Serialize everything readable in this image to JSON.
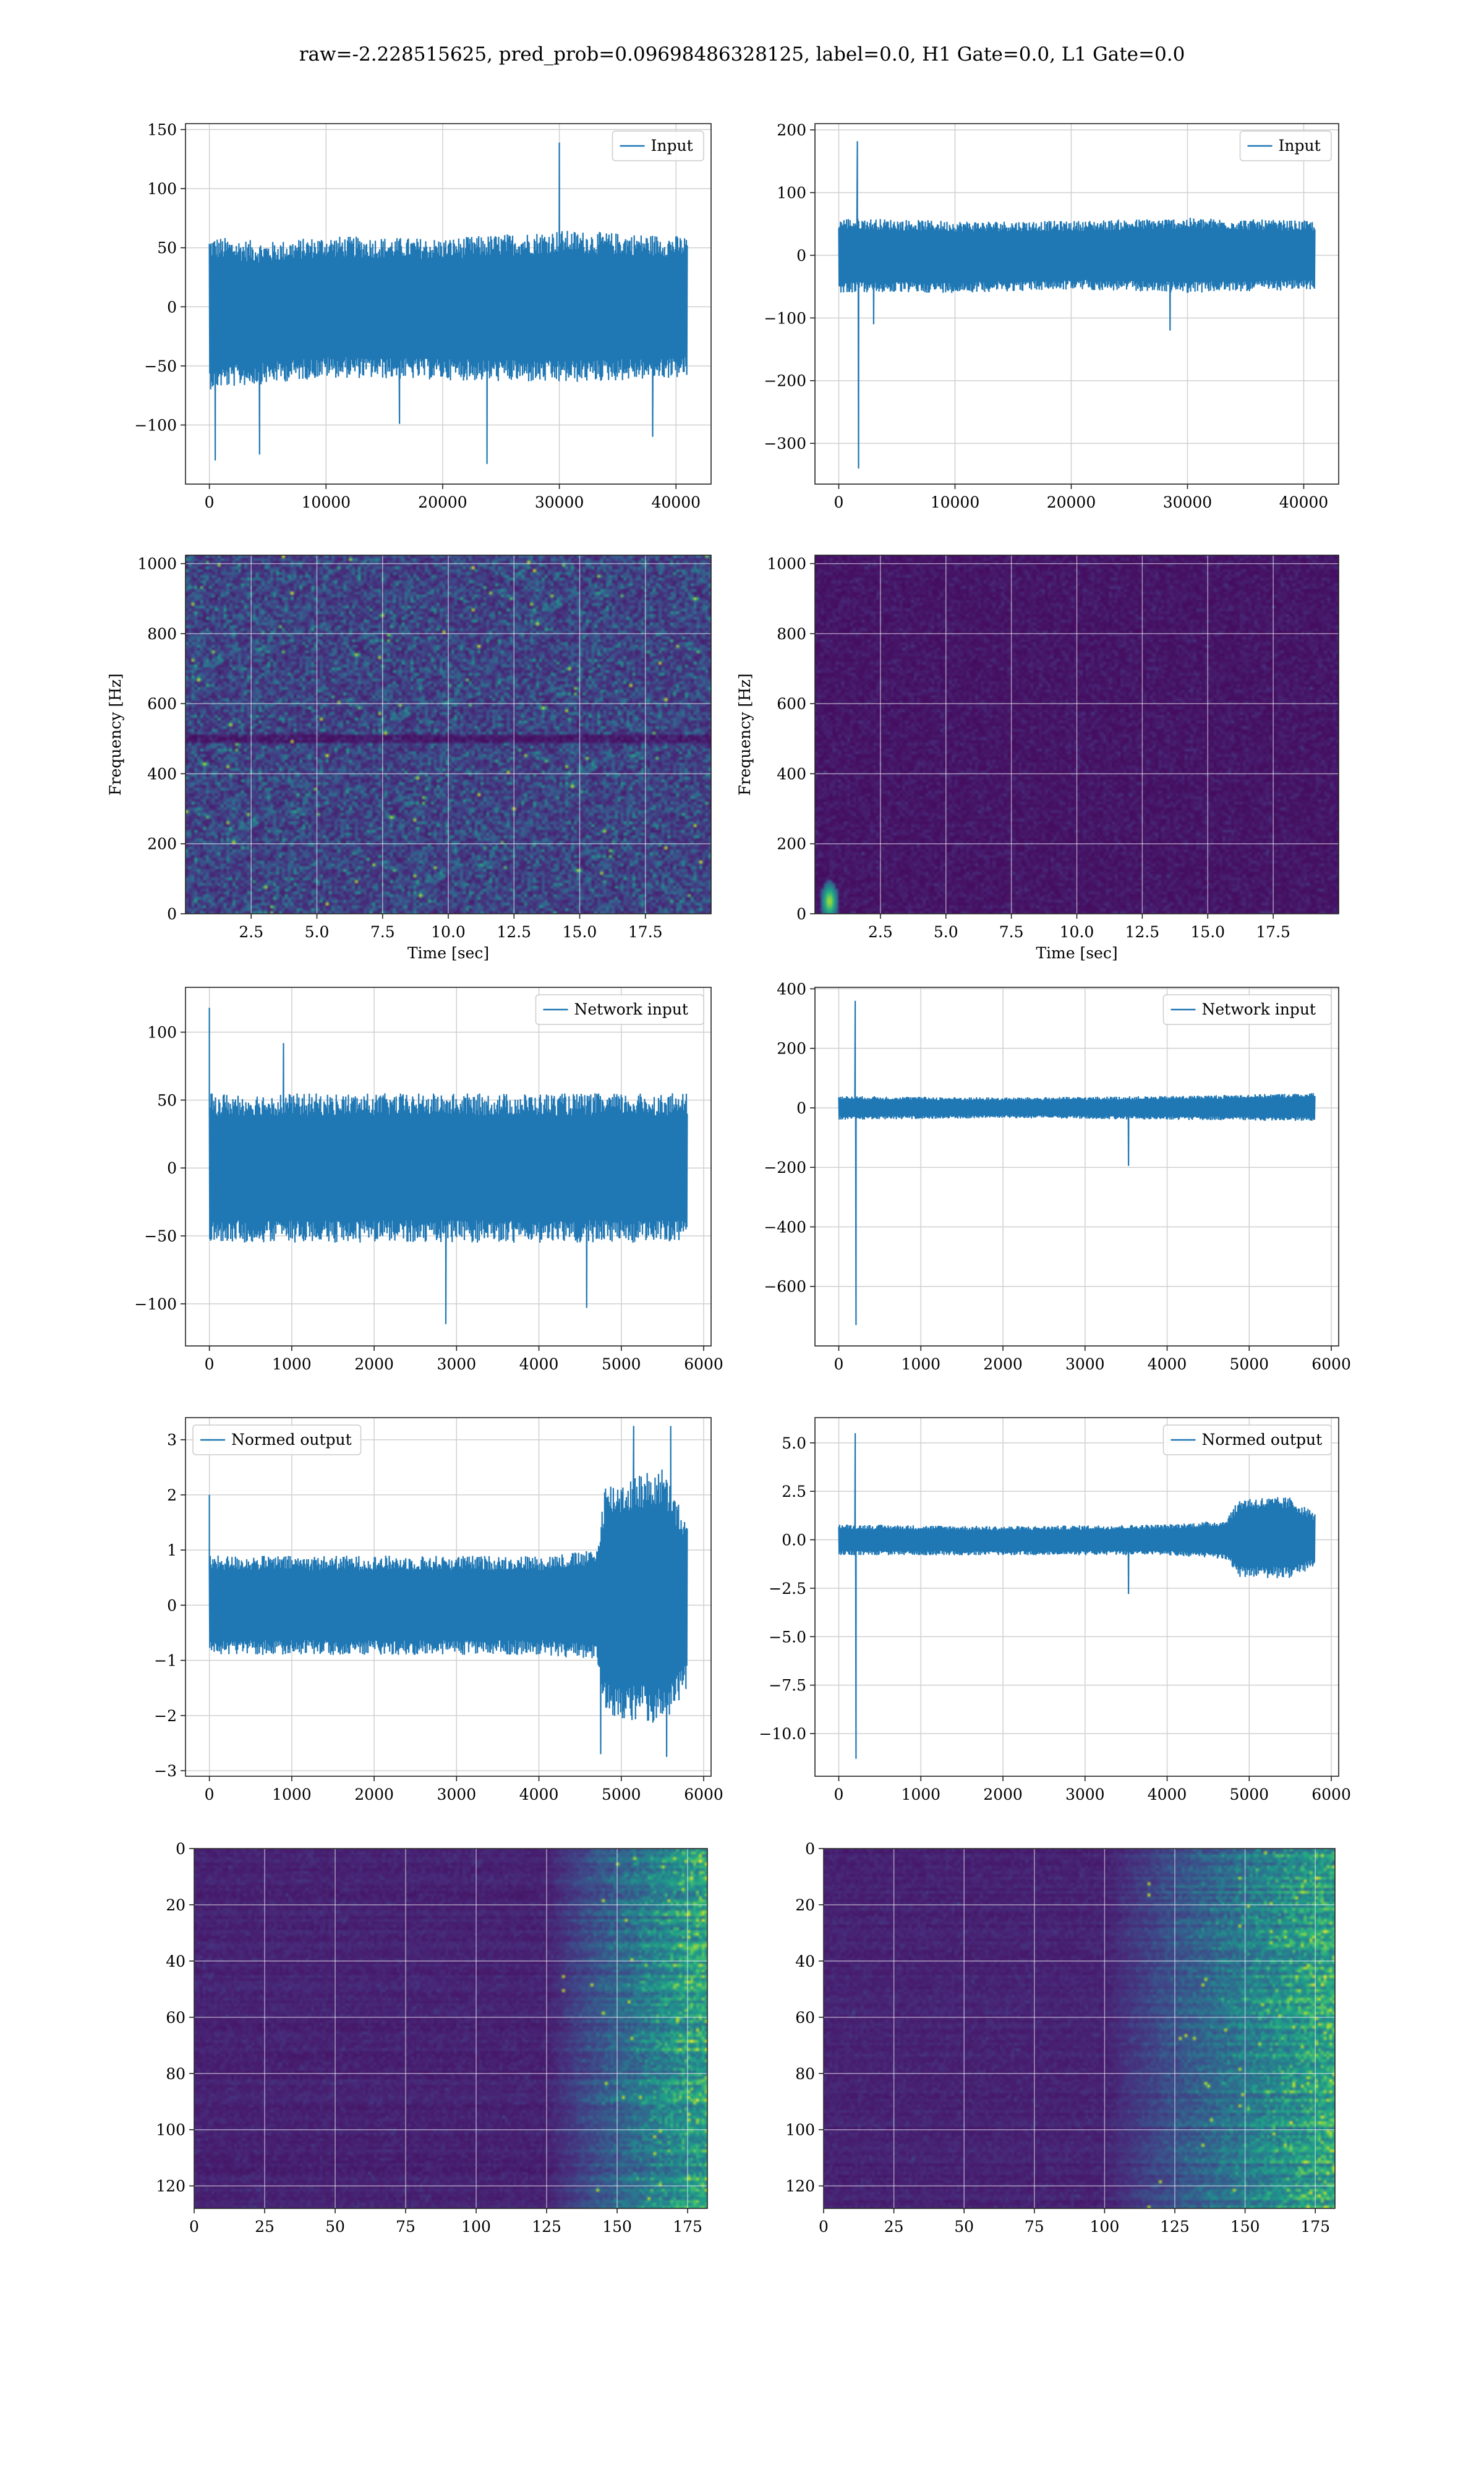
{
  "figure": {
    "title": "raw=-2.228515625, pred_prob=0.09698486328125, label=0.0, H1 Gate=0.0, L1 Gate=0.0"
  },
  "colors": {
    "line": "#1f77b4",
    "grid": "#d0d0d0",
    "viridis_low": "#440154",
    "viridis_mid": "#21918c",
    "viridis_high": "#fde725"
  },
  "chart_data": [
    {
      "id": "input-h1",
      "type": "line",
      "series": [
        {
          "name": "Input",
          "x_range": [
            0,
            40960
          ],
          "envelope": [
            [
              0,
              -70,
              60
            ],
            [
              5000,
              -65,
              55
            ],
            [
              10000,
              -60,
              60
            ],
            [
              20000,
              -62,
              58
            ],
            [
              30000,
              -65,
              65
            ],
            [
              40960,
              -60,
              60
            ]
          ],
          "spikes": [
            [
              500,
              -130
            ],
            [
              4300,
              -125
            ],
            [
              30000,
              139
            ],
            [
              16300,
              -99
            ],
            [
              23800,
              -133
            ],
            [
              38000,
              -110
            ]
          ]
        }
      ],
      "legend": "upper right",
      "xlim": [
        -2048,
        43008
      ],
      "ylim": [
        -150,
        155
      ],
      "xticks": [
        0,
        10000,
        20000,
        30000,
        40000
      ],
      "yticks": [
        -100,
        -50,
        0,
        50,
        100,
        150
      ],
      "grid": true
    },
    {
      "id": "input-l1",
      "type": "line",
      "series": [
        {
          "name": "Input",
          "x_range": [
            0,
            40960
          ],
          "envelope": [
            [
              0,
              -60,
              60
            ],
            [
              10000,
              -60,
              55
            ],
            [
              20000,
              -55,
              55
            ],
            [
              30000,
              -60,
              60
            ],
            [
              40960,
              -55,
              55
            ]
          ],
          "spikes": [
            [
              1600,
              182
            ],
            [
              1700,
              -340
            ],
            [
              3000,
              -110
            ],
            [
              28500,
              -120
            ]
          ]
        }
      ],
      "legend": "upper right",
      "xlim": [
        -2048,
        43008
      ],
      "ylim": [
        -365,
        210
      ],
      "xticks": [
        0,
        10000,
        20000,
        30000,
        40000
      ],
      "yticks": [
        -300,
        -200,
        -100,
        0,
        100,
        200
      ],
      "grid": true
    },
    {
      "id": "spectrogram-h1",
      "type": "heatmap",
      "colormap": "viridis",
      "intensity": "noise-uniform",
      "xlabel": "Time [sec]",
      "ylabel": "Frequency [Hz]",
      "xlim": [
        0,
        20
      ],
      "ylim": [
        0,
        1024
      ],
      "xticks": [
        2.5,
        5.0,
        7.5,
        10.0,
        12.5,
        15.0,
        17.5
      ],
      "yticks": [
        0,
        200,
        400,
        600,
        800,
        1000
      ],
      "grid": true
    },
    {
      "id": "spectrogram-l1",
      "type": "heatmap",
      "colormap": "viridis",
      "intensity": "low-with-glitch",
      "hotspot": {
        "t": 0.5,
        "f": 40
      },
      "xlabel": "Time [sec]",
      "ylabel": "Frequency [Hz]",
      "xlim": [
        0,
        20
      ],
      "ylim": [
        0,
        1024
      ],
      "xticks": [
        2.5,
        5.0,
        7.5,
        10.0,
        12.5,
        15.0,
        17.5
      ],
      "yticks": [
        0,
        200,
        400,
        600,
        800,
        1000
      ],
      "grid": true
    },
    {
      "id": "network-input-h1",
      "type": "line",
      "series": [
        {
          "name": "Network input",
          "x_range": [
            0,
            5800
          ],
          "envelope": [
            [
              0,
              -55,
              55
            ],
            [
              2000,
              -55,
              55
            ],
            [
              4000,
              -55,
              55
            ],
            [
              5800,
              -55,
              55
            ]
          ],
          "spikes": [
            [
              0,
              118
            ],
            [
              2870,
              -115
            ],
            [
              4580,
              -103
            ],
            [
              900,
              92
            ]
          ]
        }
      ],
      "legend": "upper right",
      "xlim": [
        -290,
        6090
      ],
      "ylim": [
        -131,
        133
      ],
      "xticks": [
        0,
        1000,
        2000,
        3000,
        4000,
        5000,
        6000
      ],
      "yticks": [
        -100,
        -50,
        0,
        50,
        100
      ],
      "grid": true
    },
    {
      "id": "network-input-l1",
      "type": "line",
      "series": [
        {
          "name": "Network input",
          "x_range": [
            0,
            5800
          ],
          "envelope": [
            [
              0,
              -40,
              40
            ],
            [
              2000,
              -35,
              35
            ],
            [
              4000,
              -40,
              40
            ],
            [
              5800,
              -45,
              50
            ]
          ],
          "spikes": [
            [
              200,
              360
            ],
            [
              210,
              -730
            ],
            [
              3530,
              -195
            ]
          ]
        }
      ],
      "legend": "upper right",
      "xlim": [
        -290,
        6090
      ],
      "ylim": [
        -800,
        405
      ],
      "xticks": [
        0,
        1000,
        2000,
        3000,
        4000,
        5000,
        6000
      ],
      "yticks": [
        -600,
        -400,
        -200,
        0,
        200,
        400
      ],
      "grid": true
    },
    {
      "id": "normed-output-h1",
      "type": "line",
      "series": [
        {
          "name": "Normed output",
          "x_range": [
            0,
            5800
          ],
          "envelope": [
            [
              0,
              -0.9,
              0.9
            ],
            [
              2000,
              -0.9,
              0.9
            ],
            [
              4000,
              -0.9,
              0.9
            ],
            [
              4700,
              -1.0,
              1.0
            ],
            [
              4800,
              -2.0,
              2.2
            ],
            [
              5500,
              -2.2,
              2.5
            ],
            [
              5800,
              -1.5,
              1.5
            ]
          ],
          "spikes": [
            [
              0,
              2.0
            ],
            [
              5150,
              3.25
            ],
            [
              5600,
              3.25
            ],
            [
              4750,
              -2.7
            ],
            [
              5550,
              -2.75
            ]
          ]
        }
      ],
      "legend": "upper left",
      "xlim": [
        -290,
        6090
      ],
      "ylim": [
        -3.1,
        3.4
      ],
      "xticks": [
        0,
        1000,
        2000,
        3000,
        4000,
        5000,
        6000
      ],
      "yticks": [
        -3,
        -2,
        -1,
        0,
        1,
        2,
        3
      ],
      "grid": true
    },
    {
      "id": "normed-output-l1",
      "type": "line",
      "series": [
        {
          "name": "Normed output",
          "x_range": [
            0,
            5800
          ],
          "envelope": [
            [
              0,
              -0.8,
              0.8
            ],
            [
              2000,
              -0.8,
              0.7
            ],
            [
              4000,
              -0.8,
              0.8
            ],
            [
              4700,
              -1.0,
              1.0
            ],
            [
              4900,
              -2.0,
              2.2
            ],
            [
              5500,
              -2.0,
              2.2
            ],
            [
              5800,
              -1.4,
              1.4
            ]
          ],
          "spikes": [
            [
              200,
              5.5
            ],
            [
              210,
              -11.3
            ],
            [
              3530,
              -2.8
            ]
          ]
        }
      ],
      "legend": "upper right",
      "xlim": [
        -290,
        6090
      ],
      "ylim": [
        -12.2,
        6.3
      ],
      "xticks": [
        0,
        1000,
        2000,
        3000,
        4000,
        5000,
        6000
      ],
      "yticks": [
        -10.0,
        -7.5,
        -5.0,
        -2.5,
        0.0,
        2.5,
        5.0
      ],
      "grid": true
    },
    {
      "id": "features-h1",
      "type": "heatmap",
      "colormap": "viridis",
      "intensity": "rows-rising-after-x",
      "onset": 125,
      "xlim": [
        0,
        182
      ],
      "ylim": [
        128,
        0
      ],
      "xticks": [
        0,
        25,
        50,
        75,
        100,
        125,
        150,
        175
      ],
      "yticks": [
        0,
        20,
        40,
        60,
        80,
        100,
        120
      ],
      "grid": true
    },
    {
      "id": "features-l1",
      "type": "heatmap",
      "colormap": "viridis",
      "intensity": "rows-rising-after-x",
      "onset": 100,
      "xlim": [
        0,
        182
      ],
      "ylim": [
        128,
        0
      ],
      "xticks": [
        0,
        25,
        50,
        75,
        100,
        125,
        150,
        175
      ],
      "yticks": [
        0,
        20,
        40,
        60,
        80,
        100,
        120
      ],
      "grid": true
    }
  ]
}
